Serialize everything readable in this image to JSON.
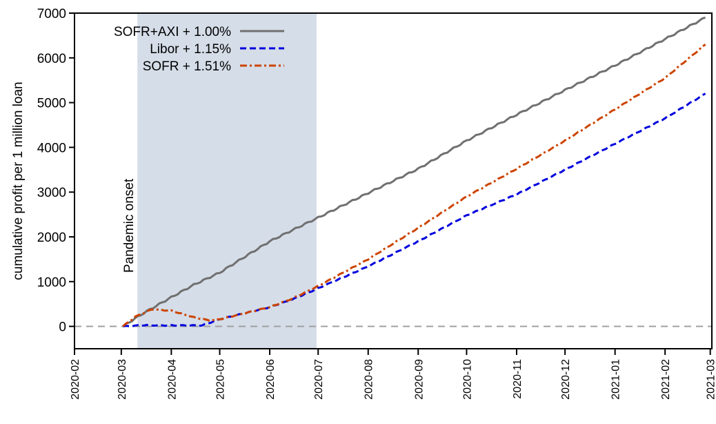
{
  "chart_data": {
    "type": "line",
    "title": "",
    "xlabel": "",
    "ylabel": "cumulative profit per 1 million loan",
    "xlim": [
      "2020-02-01",
      "2021-03-02"
    ],
    "ylim": [
      -500,
      7000
    ],
    "yticks": [
      0,
      1000,
      2000,
      3000,
      4000,
      5000,
      6000,
      7000
    ],
    "xticks": [
      "2020-02",
      "2020-03",
      "2020-04",
      "2020-05",
      "2020-06",
      "2020-07",
      "2020-08",
      "2020-09",
      "2020-10",
      "2020-11",
      "2020-12",
      "2021-01",
      "2021-02",
      "2021-03"
    ],
    "grid": false,
    "legend_placement": "top-left",
    "shaded_region": {
      "from": "2020-03-11",
      "to": "2020-06-30",
      "color": "#d5dde8",
      "label": "Pandemic onset"
    },
    "reference_line": {
      "y": 0,
      "color": "#a0a0a0",
      "style": "dashed"
    },
    "series": [
      {
        "name": "SOFR+AXI + 1.00%",
        "color": "#707070",
        "style": "solid",
        "x": [
          "2020-03-02",
          "2020-03-15",
          "2020-04-01",
          "2020-04-15",
          "2020-05-01",
          "2020-05-15",
          "2020-06-01",
          "2020-06-15",
          "2020-07-01",
          "2020-08-01",
          "2020-09-01",
          "2020-10-01",
          "2020-11-01",
          "2020-12-01",
          "2021-01-01",
          "2021-02-01",
          "2021-02-26"
        ],
        "y": [
          0,
          300,
          650,
          930,
          1200,
          1520,
          1900,
          2150,
          2430,
          2980,
          3520,
          4150,
          4730,
          5280,
          5830,
          6420,
          6900
        ]
      },
      {
        "name": "Libor + 1.15%",
        "color": "#0000dd",
        "style": "dashed",
        "x": [
          "2020-03-02",
          "2020-03-15",
          "2020-04-01",
          "2020-04-20",
          "2020-05-01",
          "2020-05-15",
          "2020-06-01",
          "2020-06-15",
          "2020-07-01",
          "2020-08-01",
          "2020-09-01",
          "2020-10-01",
          "2020-11-01",
          "2020-12-01",
          "2021-01-01",
          "2021-02-01",
          "2021-02-26"
        ],
        "y": [
          0,
          25,
          20,
          20,
          160,
          280,
          430,
          600,
          850,
          1340,
          1900,
          2480,
          2950,
          3500,
          4080,
          4650,
          5200
        ]
      },
      {
        "name": "SOFR + 1.51%",
        "color": "#cc4400",
        "style": "dashdot",
        "x": [
          "2020-03-02",
          "2020-03-10",
          "2020-03-20",
          "2020-04-01",
          "2020-04-15",
          "2020-04-25",
          "2020-05-01",
          "2020-05-15",
          "2020-06-01",
          "2020-06-15",
          "2020-07-01",
          "2020-08-01",
          "2020-09-01",
          "2020-10-01",
          "2020-11-01",
          "2020-12-01",
          "2021-01-01",
          "2021-02-01",
          "2021-02-26"
        ],
        "y": [
          0,
          220,
          380,
          350,
          200,
          130,
          160,
          280,
          430,
          620,
          900,
          1500,
          2200,
          2900,
          3520,
          4150,
          4850,
          5550,
          6300
        ]
      }
    ]
  }
}
